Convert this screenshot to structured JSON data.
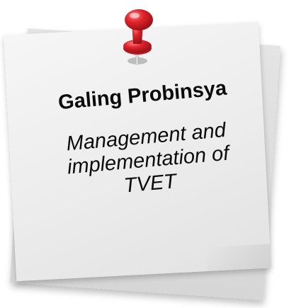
{
  "note": {
    "title": "Galing Probinsya",
    "subtitle_lines": [
      "Management and",
      "implementation of",
      "TVET"
    ]
  },
  "icons": {
    "pin": "push-pin-icon"
  },
  "colors": {
    "pin_red": "#e0242b",
    "pin_shadow": "#9b1218",
    "paper": "#efefef",
    "text": "#0b0b0b"
  }
}
